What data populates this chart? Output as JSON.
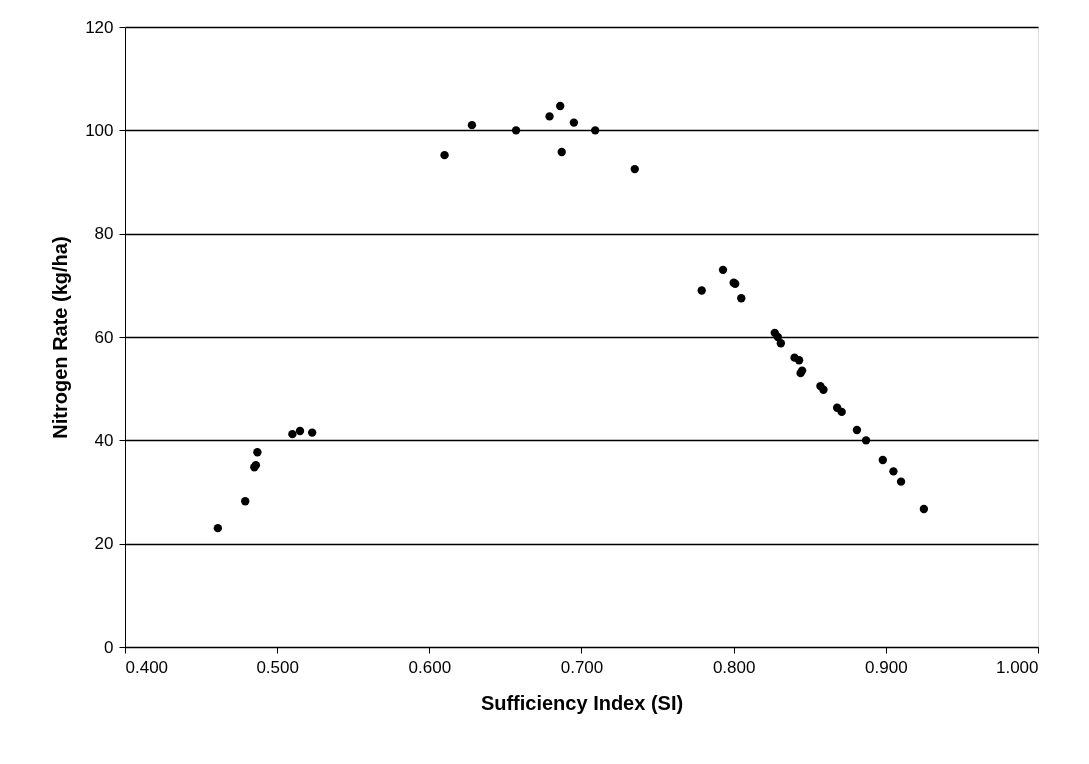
{
  "chart_data": {
    "type": "scatter",
    "xlabel": "Sufficiency Index (SI)",
    "ylabel": "Nitrogen Rate (kg/ha)",
    "x": [
      0.461,
      0.479,
      0.485,
      0.486,
      0.487,
      0.51,
      0.515,
      0.523,
      0.61,
      0.628,
      0.657,
      0.679,
      0.686,
      0.687,
      0.695,
      0.709,
      0.735,
      0.779,
      0.793,
      0.8,
      0.801,
      0.805,
      0.827,
      0.829,
      0.831,
      0.84,
      0.843,
      0.844,
      0.845,
      0.857,
      0.859,
      0.868,
      0.871,
      0.881,
      0.887,
      0.898,
      0.905,
      0.91,
      0.925
    ],
    "series": [
      {
        "color": "#000000",
        "values": [
          23,
          28.2,
          34.8,
          35.2,
          37.7,
          41.2,
          41.8,
          41.5,
          95.2,
          101,
          100,
          102.7,
          104.7,
          95.8,
          101.5,
          100,
          92.5,
          69,
          73,
          70.5,
          70.3,
          67.5,
          60.8,
          60,
          58.8,
          56,
          55.5,
          53,
          53.5,
          50.5,
          49.8,
          46.3,
          45.5,
          42,
          40,
          36.2,
          34,
          32,
          26.7
        ]
      }
    ],
    "xlim": [
      0.4,
      1.0
    ],
    "xticks": [
      {
        "value": 0.4,
        "label": "0.400"
      },
      {
        "value": 0.5,
        "label": "0.500"
      },
      {
        "value": 0.6,
        "label": "0.600"
      },
      {
        "value": 0.7,
        "label": "0.700"
      },
      {
        "value": 0.8,
        "label": "0.800"
      },
      {
        "value": 0.9,
        "label": "0.900"
      },
      {
        "value": 1.0,
        "label": "1.000"
      }
    ],
    "ylim": [
      0,
      120
    ],
    "yticks": [
      0,
      20,
      40,
      60,
      80,
      100,
      120
    ],
    "grid": "y",
    "marker": "circle",
    "legend": false
  }
}
